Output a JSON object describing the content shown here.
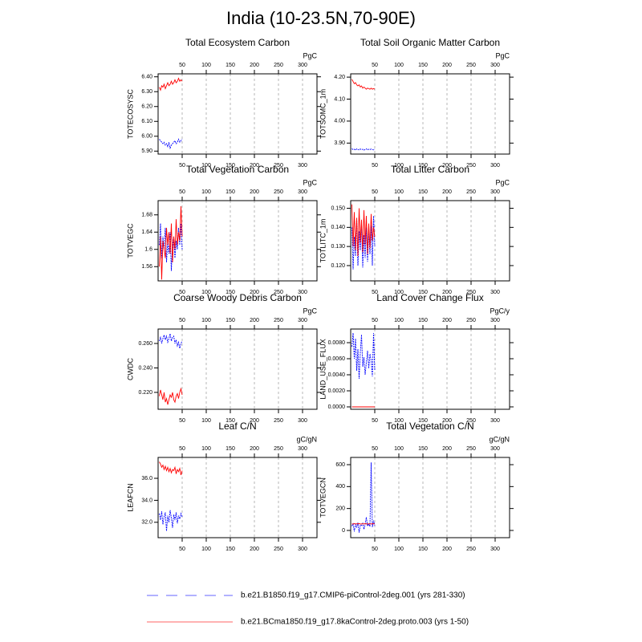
{
  "title": "India (10-23.5N,70-90E)",
  "chart_data": [
    {
      "type": "line",
      "title": "Total Ecosystem Carbon",
      "ylabel": "TOTECOSYSC",
      "units": "PgC",
      "x": [
        2.5,
        5,
        7.5,
        10,
        12.5,
        15,
        17.5,
        20,
        22.5,
        25,
        27.5,
        30,
        32.5,
        35,
        37.5,
        40,
        42.5,
        45,
        47.5,
        50
      ],
      "xlim": [
        0,
        330
      ],
      "xticks": [
        50,
        100,
        150,
        200,
        250,
        300
      ],
      "x2ticks": [
        50,
        100,
        150,
        200,
        250,
        300
      ],
      "xtick_color": "#ff0000",
      "x2tick_color": "#0000ff",
      "grid": true,
      "ylim": [
        5.88,
        6.42
      ],
      "yticks": [
        {
          "value": 5.9,
          "label": "5.90"
        },
        {
          "value": 6.0,
          "label": "6.00"
        },
        {
          "value": 6.1,
          "label": "6.10"
        },
        {
          "value": 6.2,
          "label": "6.20"
        },
        {
          "value": 6.3,
          "label": "6.30"
        },
        {
          "value": 6.4,
          "label": "6.40"
        }
      ],
      "series": [
        {
          "name": "b.e21.B1850.f19_g17.CMIP6-piControl-2deg.001 (yrs 281-330)",
          "color": "#0000ff",
          "style": "dashed",
          "values": [
            5.98,
            5.97,
            5.96,
            5.95,
            5.96,
            5.94,
            5.95,
            5.93,
            5.96,
            5.92,
            5.94,
            5.95,
            5.96,
            5.97,
            5.95,
            5.96,
            5.98,
            5.96,
            5.97,
            5.98
          ]
        },
        {
          "name": "b.e21.BCma1850.f19_g17.8kaControl-2deg.proto.003 (yrs 1-50)",
          "color": "#ff0000",
          "style": "solid",
          "values": [
            6.33,
            6.31,
            6.34,
            6.33,
            6.35,
            6.32,
            6.34,
            6.36,
            6.34,
            6.35,
            6.37,
            6.35,
            6.36,
            6.38,
            6.36,
            6.37,
            6.39,
            6.37,
            6.38,
            6.37
          ]
        }
      ]
    },
    {
      "type": "line",
      "title": "Total Soil Organic Matter Carbon",
      "ylabel": "TOTSOMC_1m",
      "units": "PgC",
      "x": [
        2.5,
        5,
        7.5,
        10,
        12.5,
        15,
        17.5,
        20,
        22.5,
        25,
        27.5,
        30,
        32.5,
        35,
        37.5,
        40,
        42.5,
        45,
        47.5,
        50
      ],
      "xlim": [
        0,
        330
      ],
      "xticks": [
        50,
        100,
        150,
        200,
        250,
        300
      ],
      "x2ticks": [
        50,
        100,
        150,
        200,
        250,
        300
      ],
      "xtick_color": "#ff0000",
      "x2tick_color": "#0000ff",
      "grid": true,
      "ylim": [
        3.85,
        4.215
      ],
      "yticks": [
        {
          "value": 3.9,
          "label": "3.90"
        },
        {
          "value": 4.0,
          "label": "4.00"
        },
        {
          "value": 4.1,
          "label": "4.10"
        },
        {
          "value": 4.2,
          "label": "4.20"
        }
      ],
      "series": [
        {
          "name": "b.e21.B1850.f19_g17.CMIP6-piControl-2deg.001 (yrs 281-330)",
          "color": "#0000ff",
          "style": "dashed",
          "values": [
            3.875,
            3.87,
            3.872,
            3.868,
            3.874,
            3.871,
            3.869,
            3.873,
            3.87,
            3.872,
            3.868,
            3.871,
            3.874,
            3.869,
            3.872,
            3.87,
            3.873,
            3.871,
            3.869,
            3.872
          ]
        },
        {
          "name": "b.e21.BCma1850.f19_g17.8kaControl-2deg.proto.003 (yrs 1-50)",
          "color": "#ff0000",
          "style": "solid",
          "values": [
            4.19,
            4.18,
            4.17,
            4.175,
            4.165,
            4.16,
            4.165,
            4.155,
            4.16,
            4.15,
            4.155,
            4.15,
            4.145,
            4.15,
            4.148,
            4.145,
            4.15,
            4.145,
            4.148,
            4.145
          ]
        }
      ]
    },
    {
      "type": "line",
      "title": "Total Vegetation Carbon",
      "ylabel": "TOTVEGC",
      "units": "PgC",
      "x": [
        2.5,
        5,
        7.5,
        10,
        12.5,
        15,
        17.5,
        20,
        22.5,
        25,
        27.5,
        30,
        32.5,
        35,
        37.5,
        40,
        42.5,
        45,
        47.5,
        50
      ],
      "xlim": [
        0,
        330
      ],
      "xticks": [
        50,
        100,
        150,
        200,
        250,
        300
      ],
      "x2ticks": [
        50,
        100,
        150,
        200,
        250,
        300
      ],
      "xtick_color": "#ff0000",
      "x2tick_color": "#0000ff",
      "grid": true,
      "ylim": [
        1.527,
        1.713
      ],
      "yticks": [
        1.56,
        1.6,
        1.64,
        1.68
      ],
      "series": [
        {
          "name": "b.e21.B1850.f19_g17.CMIP6-piControl-2deg.001 (yrs 281-330)",
          "color": "#0000ff",
          "style": "dashed",
          "values": [
            1.61,
            1.66,
            1.58,
            1.63,
            1.6,
            1.65,
            1.57,
            1.62,
            1.59,
            1.64,
            1.55,
            1.61,
            1.63,
            1.58,
            1.62,
            1.6,
            1.65,
            1.61,
            1.66,
            1.6
          ]
        },
        {
          "name": "b.e21.BCma1850.f19_g17.8kaControl-2deg.proto.003 (yrs 1-50)",
          "color": "#ff0000",
          "style": "solid",
          "values": [
            1.56,
            1.63,
            1.53,
            1.62,
            1.6,
            1.58,
            1.65,
            1.61,
            1.64,
            1.59,
            1.66,
            1.57,
            1.63,
            1.6,
            1.67,
            1.61,
            1.64,
            1.62,
            1.7,
            1.63
          ]
        }
      ]
    },
    {
      "type": "line",
      "title": "Total Litter Carbon",
      "ylabel": "TOTLITC_1m",
      "units": "PgC",
      "x": [
        2.5,
        5,
        7.5,
        10,
        12.5,
        15,
        17.5,
        20,
        22.5,
        25,
        27.5,
        30,
        32.5,
        35,
        37.5,
        40,
        42.5,
        45,
        47.5,
        50
      ],
      "xlim": [
        0,
        330
      ],
      "xticks": [
        50,
        100,
        150,
        200,
        250,
        300
      ],
      "x2ticks": [
        50,
        100,
        150,
        200,
        250,
        300
      ],
      "xtick_color": "#ff0000",
      "x2tick_color": "#0000ff",
      "grid": true,
      "ylim": [
        0.112,
        0.154
      ],
      "yticks": [
        {
          "value": 0.12,
          "label": "0.120"
        },
        {
          "value": 0.13,
          "label": "0.130"
        },
        {
          "value": 0.14,
          "label": "0.140"
        },
        {
          "value": 0.15,
          "label": "0.150"
        }
      ],
      "series": [
        {
          "name": "b.e21.B1850.f19_g17.CMIP6-piControl-2deg.001 (yrs 281-330)",
          "color": "#0000ff",
          "style": "dashed",
          "values": [
            0.14,
            0.118,
            0.135,
            0.125,
            0.145,
            0.12,
            0.138,
            0.128,
            0.142,
            0.119,
            0.136,
            0.124,
            0.14,
            0.122,
            0.138,
            0.126,
            0.141,
            0.12,
            0.146,
            0.13
          ]
        },
        {
          "name": "b.e21.BCma1850.f19_g17.8kaControl-2deg.proto.003 (yrs 1-50)",
          "color": "#ff0000",
          "style": "solid",
          "values": [
            0.152,
            0.13,
            0.148,
            0.128,
            0.145,
            0.125,
            0.15,
            0.132,
            0.144,
            0.127,
            0.149,
            0.131,
            0.146,
            0.126,
            0.142,
            0.129,
            0.147,
            0.133,
            0.14,
            0.135
          ]
        }
      ]
    },
    {
      "type": "line",
      "title": "Coarse Woody Debris Carbon",
      "ylabel": "CWDC",
      "units": "PgC",
      "x": [
        2.5,
        5,
        7.5,
        10,
        12.5,
        15,
        17.5,
        20,
        22.5,
        25,
        27.5,
        30,
        32.5,
        35,
        37.5,
        40,
        42.5,
        45,
        47.5,
        50
      ],
      "xlim": [
        0,
        330
      ],
      "xticks": [
        50,
        100,
        150,
        200,
        250,
        300
      ],
      "x2ticks": [
        50,
        100,
        150,
        200,
        250,
        300
      ],
      "xtick_color": "#ff0000",
      "x2tick_color": "#0000ff",
      "grid": true,
      "ylim": [
        0.2062,
        0.2718
      ],
      "yticks": [
        {
          "value": 0.22,
          "label": "0.220"
        },
        {
          "value": 0.24,
          "label": "0.240"
        },
        {
          "value": 0.26,
          "label": "0.260"
        }
      ],
      "series": [
        {
          "name": "b.e21.B1850.f19_g17.CMIP6-piControl-2deg.001 (yrs 281-330)",
          "color": "#0000ff",
          "style": "dashed",
          "values": [
            0.262,
            0.265,
            0.26,
            0.264,
            0.267,
            0.263,
            0.266,
            0.261,
            0.264,
            0.268,
            0.262,
            0.265,
            0.266,
            0.26,
            0.263,
            0.258,
            0.261,
            0.256,
            0.26,
            0.262
          ]
        },
        {
          "name": "b.e21.BCma1850.f19_g17.8kaControl-2deg.proto.003 (yrs 1-50)",
          "color": "#ff0000",
          "style": "solid",
          "values": [
            0.217,
            0.222,
            0.218,
            0.214,
            0.22,
            0.212,
            0.215,
            0.21,
            0.214,
            0.218,
            0.216,
            0.22,
            0.214,
            0.212,
            0.217,
            0.219,
            0.215,
            0.22,
            0.223,
            0.218
          ]
        }
      ]
    },
    {
      "type": "line",
      "title": "Land Cover Change Flux",
      "ylabel": "LAND_USE_FLUX",
      "units": "PgC/y",
      "x": [
        2.5,
        5,
        7.5,
        10,
        12.5,
        15,
        17.5,
        20,
        22.5,
        25,
        27.5,
        30,
        32.5,
        35,
        37.5,
        40,
        42.5,
        45,
        47.5,
        50
      ],
      "xlim": [
        0,
        330
      ],
      "xticks": [
        50,
        100,
        150,
        200,
        250,
        300
      ],
      "x2ticks": [
        50,
        100,
        150,
        200,
        250,
        300
      ],
      "xtick_color": "#ff0000",
      "x2tick_color": "#0000ff",
      "grid": true,
      "ylim": [
        -0.0003,
        0.0097
      ],
      "yticks": [
        {
          "value": 0,
          "label": "0.0000"
        },
        {
          "value": 0.002,
          "label": "0.0020"
        },
        {
          "value": 0.004,
          "label": "0.0040"
        },
        {
          "value": 0.006,
          "label": "0.0060"
        },
        {
          "value": 0.008,
          "label": "0.0080"
        }
      ],
      "series": [
        {
          "name": "b.e21.B1850.f19_g17.CMIP6-piControl-2deg.001 (yrs 281-330)",
          "color": "#0000ff",
          "style": "dashed",
          "values": [
            0.0075,
            0.0092,
            0.006,
            0.0085,
            0.0045,
            0.0072,
            0.0035,
            0.0068,
            0.009,
            0.005,
            0.0062,
            0.004,
            0.0055,
            0.007,
            0.0048,
            0.0066,
            0.0058,
            0.0038,
            0.0092,
            0.0045
          ]
        },
        {
          "name": "b.e21.BCma1850.f19_g17.8kaControl-2deg.proto.003 (yrs 1-50)",
          "color": "#ff0000",
          "style": "solid",
          "values": [
            0,
            0,
            0,
            0,
            0,
            0,
            0,
            0,
            0,
            0,
            0,
            0,
            0,
            0,
            0,
            0,
            0,
            0,
            0,
            0
          ]
        }
      ]
    },
    {
      "type": "line",
      "title": "Leaf C/N",
      "ylabel": "LEAFCN",
      "units": "gC/gN",
      "x": [
        2.5,
        5,
        7.5,
        10,
        12.5,
        15,
        17.5,
        20,
        22.5,
        25,
        27.5,
        30,
        32.5,
        35,
        37.5,
        40,
        42.5,
        45,
        47.5,
        50
      ],
      "xlim": [
        0,
        330
      ],
      "xticks": [
        50,
        100,
        150,
        200,
        250,
        300
      ],
      "x2ticks": [
        50,
        100,
        150,
        200,
        250,
        300
      ],
      "xtick_color": "#ff0000",
      "x2tick_color": "#0000ff",
      "grid": true,
      "ylim": [
        30.6,
        37.9
      ],
      "yticks": [
        {
          "value": 32,
          "label": "32.0"
        },
        {
          "value": 34,
          "label": "34.0"
        },
        {
          "value": 36,
          "label": "36.0"
        }
      ],
      "series": [
        {
          "name": "b.e21.B1850.f19_g17.CMIP6-piControl-2deg.001 (yrs 281-330)",
          "color": "#0000ff",
          "style": "dashed",
          "values": [
            32.8,
            32.2,
            33.0,
            31.8,
            32.5,
            32.9,
            31.2,
            32.6,
            32.0,
            33.1,
            32.4,
            31.5,
            32.7,
            32.2,
            32.9,
            31.9,
            32.6,
            32.3,
            32.8,
            32.5
          ]
        },
        {
          "name": "b.e21.BCma1850.f19_g17.8kaControl-2deg.proto.003 (yrs 1-50)",
          "color": "#ff0000",
          "style": "solid",
          "values": [
            37.5,
            37.3,
            37.0,
            37.2,
            36.8,
            37.1,
            36.7,
            37.0,
            36.6,
            36.9,
            36.5,
            36.8,
            36.7,
            37.0,
            36.4,
            36.8,
            36.6,
            36.9,
            36.3,
            36.7
          ]
        }
      ]
    },
    {
      "type": "line",
      "title": "Total Vegetation C/N",
      "ylabel": "TOTVEGCN",
      "units": "gC/gN",
      "x": [
        2.5,
        5,
        7.5,
        10,
        12.5,
        15,
        17.5,
        20,
        22.5,
        25,
        27.5,
        30,
        32.5,
        35,
        37.5,
        40,
        42.5,
        45,
        47.5,
        50
      ],
      "xlim": [
        0,
        330
      ],
      "xticks": [
        50,
        100,
        150,
        200,
        250,
        300
      ],
      "x2ticks": [
        50,
        100,
        150,
        200,
        250,
        300
      ],
      "xtick_color": "#ff0000",
      "x2tick_color": "#0000ff",
      "grid": true,
      "ylim": [
        -66,
        666
      ],
      "yticks": [
        0,
        200,
        400,
        600
      ],
      "series": [
        {
          "name": "b.e21.B1850.f19_g17.CMIP6-piControl-2deg.001 (yrs 281-330)",
          "color": "#0000ff",
          "style": "dashed",
          "values": [
            40,
            60,
            -10,
            55,
            30,
            70,
            -20,
            50,
            45,
            65,
            10,
            55,
            120,
            40,
            60,
            35,
            620,
            30,
            90,
            45
          ]
        },
        {
          "name": "b.e21.BCma1850.f19_g17.8kaControl-2deg.proto.003 (yrs 1-50)",
          "color": "#ff0000",
          "style": "solid",
          "values": [
            60,
            58,
            62,
            59,
            61,
            60,
            63,
            58,
            60,
            61,
            59,
            62,
            60,
            58,
            61,
            60,
            59,
            62,
            60,
            61
          ]
        }
      ]
    }
  ]
}
